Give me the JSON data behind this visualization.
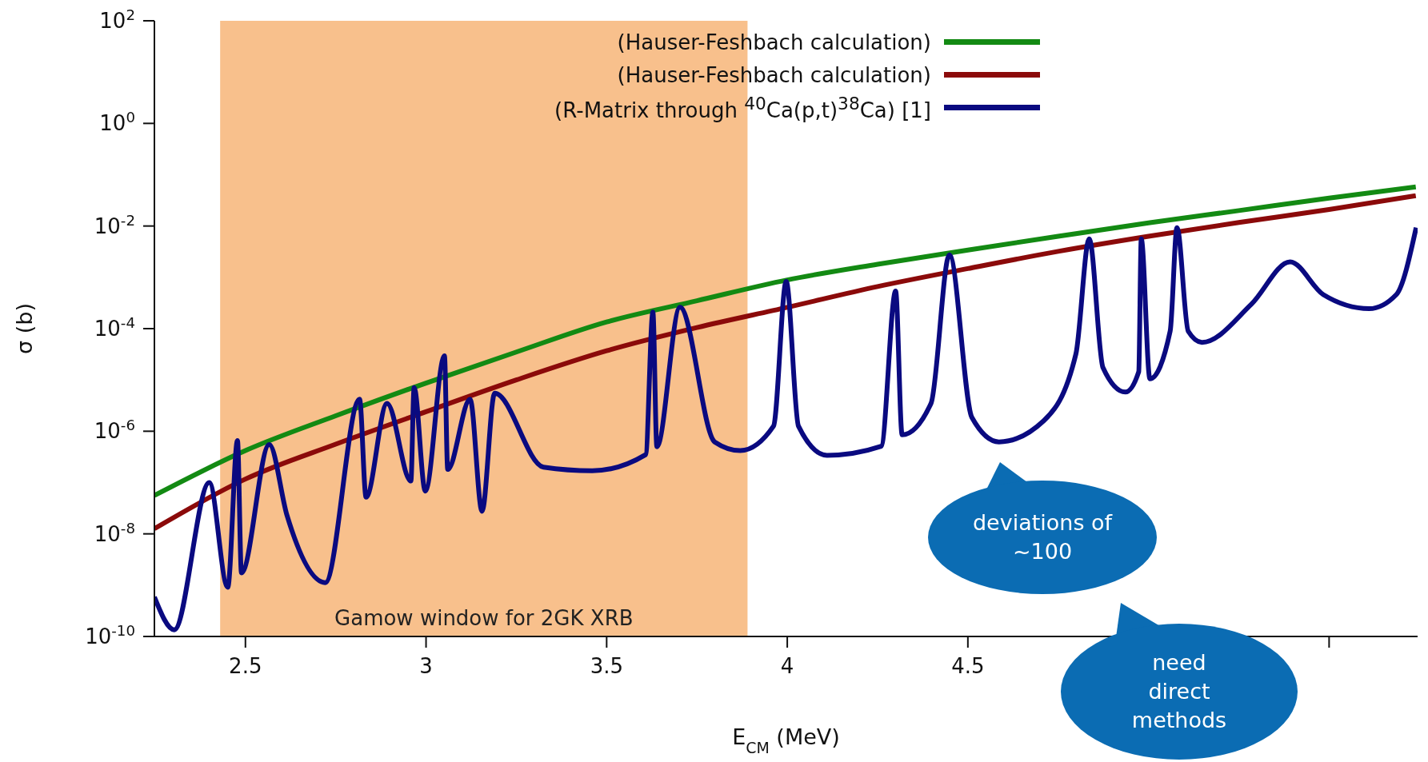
{
  "chart_data": {
    "type": "line",
    "xlabel": "E$_{CM}$ (MeV)",
    "ylabel": "σ (b)",
    "log": "y",
    "legend": "top",
    "xlim": [
      2.248,
      5.745
    ],
    "xticks": [
      2.5,
      3,
      3.5,
      4,
      4.5,
      {
        "value": 5.5,
        "label": null
      }
    ],
    "ylim": [
      1e-10,
      100
    ],
    "yticks": [
      {
        "value": 1e-10,
        "label": "10$^{-10}$"
      },
      {
        "value": 1e-08,
        "label": "10$^{-8}$"
      },
      {
        "value": 1e-06,
        "label": "10$^{-6}$"
      },
      {
        "value": 0.0001,
        "label": "10$^{-4}$"
      },
      {
        "value": 0.01,
        "label": "10$^{-2}$"
      },
      {
        "value": 1,
        "label": "10$^{0}$"
      },
      {
        "value": 100,
        "label": "10$^{2}$"
      }
    ],
    "bands": [
      {
        "axis": "x",
        "from": 2.43,
        "to": 3.89,
        "label": "Gamow window for 2GK XRB",
        "color": "#f8c08c"
      }
    ],
    "series": [
      {
        "name": "(Hauser-Feshbach calculation)",
        "color": "#138a13",
        "x": [
          2.248,
          2.5,
          2.75,
          3,
          3.25,
          3.5,
          3.75,
          4,
          4.25,
          4.5,
          4.75,
          5,
          5.25,
          5.5,
          5.74
        ],
        "values": [
          5.6e-08,
          4.2e-07,
          2e-06,
          8.7e-06,
          3.5e-05,
          0.000135,
          0.00035,
          0.00089,
          0.0018,
          0.0034,
          0.0063,
          0.0115,
          0.02,
          0.035,
          0.058
        ]
      },
      {
        "name": "(Hauser-Feshbach calculation)",
        "color": "#8b0a0a",
        "x": [
          2.248,
          2.5,
          2.75,
          3,
          3.25,
          3.5,
          3.75,
          4,
          4.25,
          4.5,
          4.75,
          5,
          5.25,
          5.5,
          5.74
        ],
        "values": [
          1.26e-08,
          1.17e-07,
          5.6e-07,
          2.4e-06,
          1e-05,
          3.7e-05,
          0.000105,
          0.00026,
          0.00066,
          0.00148,
          0.0032,
          0.0063,
          0.0117,
          0.021,
          0.039
        ]
      },
      {
        "name": "(R-Matrix through $^{40}$Ca(p,t)$^{38}$Ca) [1]",
        "color": "#0a0a80",
        "x": [
          2.248,
          2.303,
          2.4,
          2.451,
          2.478,
          2.489,
          2.566,
          2.615,
          2.721,
          2.816,
          2.834,
          2.892,
          2.958,
          2.967,
          2.998,
          3.051,
          3.06,
          3.122,
          3.155,
          3.19,
          3.325,
          3.46,
          3.608,
          3.628,
          3.639,
          3.703,
          3.799,
          3.87,
          3.962,
          3.997,
          4.031,
          4.11,
          4.26,
          4.3,
          4.318,
          4.398,
          4.449,
          4.511,
          4.586,
          4.71,
          4.799,
          4.836,
          4.874,
          4.936,
          4.973,
          4.98,
          5.004,
          5.06,
          5.079,
          5.11,
          5.148,
          5.285,
          5.392,
          5.484,
          5.611,
          5.686,
          5.741
        ],
        "values": [
          5.9e-10,
          1.35e-10,
          1e-07,
          9.1e-10,
          6.6e-07,
          1.74e-09,
          5.5e-07,
          2.3e-08,
          1.12e-09,
          4.2e-06,
          5.2e-08,
          3.5e-06,
          1.07e-07,
          7.1e-06,
          6.8e-08,
          2.95e-05,
          1.8e-07,
          4.2e-06,
          2.75e-08,
          5.5e-06,
          2e-07,
          1.7e-07,
          3.5e-07,
          0.00021,
          5e-07,
          0.00026,
          6.2e-07,
          4.2e-07,
          1.26e-06,
          0.00083,
          1.26e-06,
          3.4e-07,
          5.1e-07,
          0.00054,
          8.5e-07,
          3.5e-06,
          0.00275,
          1.86e-06,
          6.2e-07,
          1.6e-06,
          3.2e-05,
          0.0056,
          1.74e-05,
          5.8e-06,
          1.45e-05,
          0.0056,
          1.05e-05,
          8.9e-05,
          0.0093,
          8.9e-05,
          5.4e-05,
          0.0003,
          0.002,
          0.00046,
          0.000245,
          0.00046,
          0.0093
        ]
      }
    ],
    "annotations": [
      "deviations of ~100",
      "need direct methods"
    ]
  }
}
